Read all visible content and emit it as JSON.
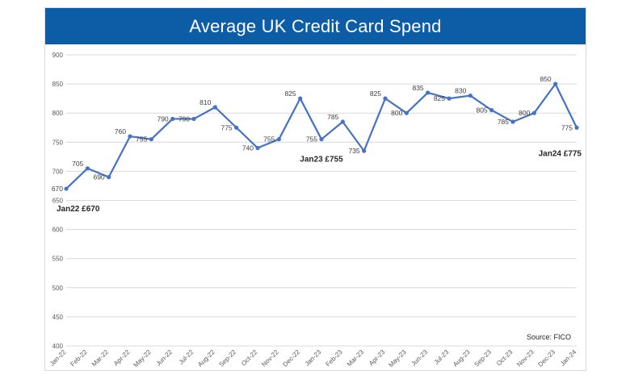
{
  "chart_data": {
    "type": "line",
    "title": "Average UK Credit Card Spend",
    "xlabel": "",
    "ylabel": "",
    "ylim": [
      400,
      900
    ],
    "yticks": [
      400,
      450,
      500,
      550,
      600,
      650,
      700,
      750,
      800,
      850,
      900
    ],
    "grid": true,
    "categories": [
      "Jan-22",
      "Feb-22",
      "Mar-22",
      "Apr-22",
      "May-22",
      "Jun-22",
      "Jul-22",
      "Aug-22",
      "Sep-22",
      "Oct-22",
      "Nov-22",
      "Dec-22",
      "Jan-23",
      "Feb-23",
      "Mar-23",
      "Apr-23",
      "May-23",
      "Jun-23",
      "Jul-23",
      "Aug-23",
      "Sep-23",
      "Oct-23",
      "Nov-23",
      "Dec-23",
      "Jan-24"
    ],
    "series": [
      {
        "values": [
          670,
          705,
          690,
          760,
          755,
          790,
          790,
          810,
          775,
          740,
          755,
          825,
          755,
          785,
          735,
          825,
          800,
          835,
          825,
          830,
          805,
          785,
          800,
          850,
          775
        ],
        "color": "#4472c4"
      }
    ],
    "annotations": [
      {
        "text": "Jan22 £670",
        "category": "Jan-22"
      },
      {
        "text": "Jan23 £755",
        "category": "Jan-23"
      },
      {
        "text": "Jan24 £775",
        "category": "Jan-24"
      }
    ],
    "source": "Source: FICO"
  }
}
